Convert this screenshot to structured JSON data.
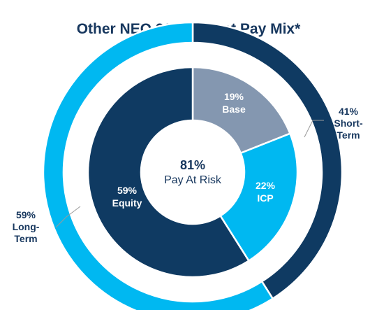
{
  "chart_data": {
    "type": "pie",
    "title": "Other NEO 2022 Target Pay Mix*",
    "center": {
      "value": "81%",
      "label": "Pay At Risk"
    },
    "inner_ring": [
      {
        "name": "Base",
        "value": 19,
        "label_value": "19%",
        "color": "#8497b0",
        "label_color": "#ffffff"
      },
      {
        "name": "ICP",
        "value": 22,
        "label_value": "22%",
        "color": "#00b8f1",
        "label_color": "#ffffff"
      },
      {
        "name": "Equity",
        "value": 59,
        "label_value": "59%",
        "color": "#0f3a62",
        "label_color": "#ffffff"
      }
    ],
    "outer_ring": [
      {
        "name": "Short-Term",
        "name_lines": [
          "Short-",
          "Term"
        ],
        "value": 41,
        "label_value": "41%",
        "color": "#0f3a62",
        "label_color": "#17375e"
      },
      {
        "name": "Long-Term",
        "name_lines": [
          "Long-",
          "Term"
        ],
        "value": 59,
        "label_value": "59%",
        "color": "#00b8f1",
        "label_color": "#17375e"
      }
    ]
  }
}
